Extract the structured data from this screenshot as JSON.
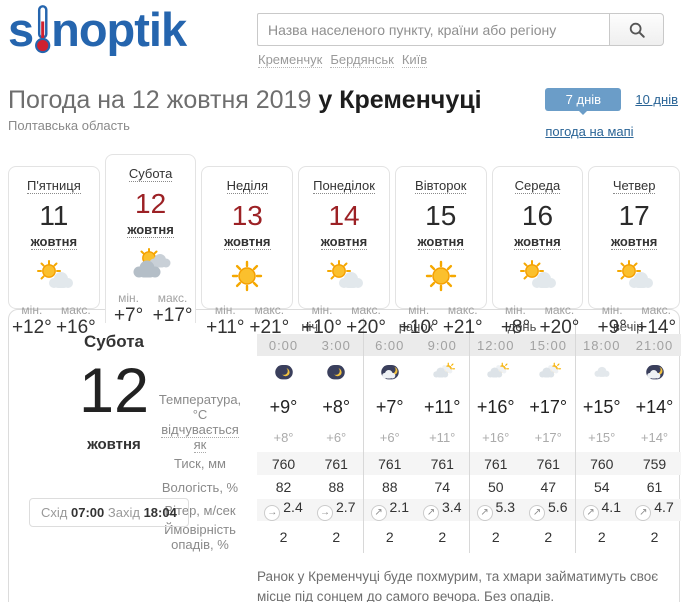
{
  "header": {
    "logo_prefix": "s",
    "logo_suffix": "noptik",
    "search_placeholder": "Назва населеного пункту, країни або регіону",
    "quick_links": [
      "Кременчук",
      "Бердянськ",
      "Київ"
    ]
  },
  "page": {
    "title_lead": "Погода на 12 жовтня 2019",
    "title_city": "у Кременчуці",
    "region": "Полтавська область",
    "days7_button": "7 днів",
    "days10_link": "10 днів",
    "map_link": "погода на мапі"
  },
  "labels": {
    "min": "мін.",
    "max": "макс."
  },
  "days": [
    {
      "name": "П'ятниця",
      "date": "11",
      "month": "жовтня",
      "icon": "sun-cloud",
      "min": "+12°",
      "max": "+16°"
    },
    {
      "name": "Субота",
      "date": "12",
      "month": "жовтня",
      "icon": "sun-clouds",
      "min": "+7°",
      "max": "+17°"
    },
    {
      "name": "Неділя",
      "date": "13",
      "month": "жовтня",
      "icon": "sun",
      "min": "+11°",
      "max": "+21°"
    },
    {
      "name": "Понеділок",
      "date": "14",
      "month": "жовтня",
      "icon": "sun-cloud",
      "min": "+10°",
      "max": "+20°"
    },
    {
      "name": "Вівторок",
      "date": "15",
      "month": "жовтня",
      "icon": "sun",
      "min": "+10°",
      "max": "+21°"
    },
    {
      "name": "Середа",
      "date": "16",
      "month": "жовтня",
      "icon": "sun-cloud",
      "min": "+8°",
      "max": "+20°"
    },
    {
      "name": "Четвер",
      "date": "17",
      "month": "жовтня",
      "icon": "sun-cloud",
      "min": "+9°",
      "max": "+14°"
    }
  ],
  "detail": {
    "day_name": "Субота",
    "date": "12",
    "month": "жовтня",
    "sunrise_label": "Схід",
    "sunrise_time": "07:00",
    "sunset_label": "Захід",
    "sunset_time": "18:04",
    "periods": [
      "ніч",
      "ранок",
      "день",
      "вечір"
    ],
    "hours": [
      "0:00",
      "3:00",
      "6:00",
      "9:00",
      "12:00",
      "15:00",
      "18:00",
      "21:00"
    ],
    "hour_icons": [
      "moon",
      "moon",
      "moon-cloud",
      "cloud-sun",
      "cloud-sun",
      "cloud-sun",
      "cloud",
      "moon-cloud"
    ],
    "row_labels": {
      "temperature": "Температура, °C",
      "feels": "відчувається як",
      "pressure": "Тиск, мм",
      "humidity": "Вологість, %",
      "wind": "Вітер, м/сек",
      "precip": "Ймовірність опадів, %"
    },
    "temperature": [
      "+9°",
      "+8°",
      "+7°",
      "+11°",
      "+16°",
      "+17°",
      "+15°",
      "+14°"
    ],
    "feels": [
      "+8°",
      "+6°",
      "+6°",
      "+11°",
      "+16°",
      "+17°",
      "+15°",
      "+14°"
    ],
    "pressure": [
      "760",
      "761",
      "761",
      "761",
      "761",
      "761",
      "760",
      "759"
    ],
    "humidity": [
      "82",
      "88",
      "88",
      "74",
      "50",
      "47",
      "54",
      "61"
    ],
    "wind_dirs": [
      "→",
      "→",
      "↗",
      "↗",
      "↗",
      "↗",
      "↗",
      "↗"
    ],
    "wind_speeds": [
      "2.4",
      "2.7",
      "2.1",
      "3.4",
      "5.3",
      "5.6",
      "4.1",
      "4.7"
    ],
    "precip": [
      "2",
      "2",
      "2",
      "2",
      "2",
      "2",
      "2",
      "2"
    ],
    "summary": "Ранок у Кременчуці буде похмурим, та хмари займатимуть своє місце під сонцем до самого вечора. Без опадів."
  },
  "colors": {
    "brand_blue": "#2565ae",
    "link_blue": "#2a6496",
    "button_blue": "#6b9dc8",
    "holiday_red": "#9c2125"
  }
}
